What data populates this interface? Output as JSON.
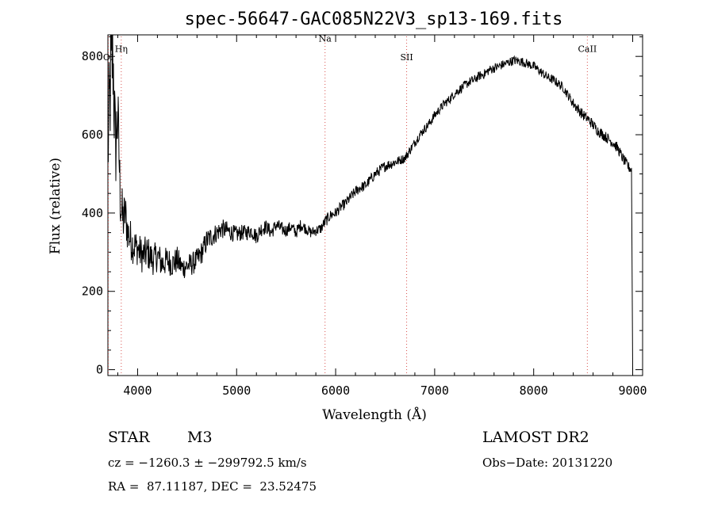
{
  "chart_data": {
    "type": "line",
    "title": "spec-56647-GAC085N22V3_sp13-169.fits",
    "xlabel": "Wavelength (Å)",
    "ylabel": "Flux (relative)",
    "xlim": [
      3700,
      9100
    ],
    "ylim": [
      -15,
      855
    ],
    "x_ticks": [
      4000,
      5000,
      6000,
      7000,
      8000,
      9000
    ],
    "x_tick_labels": [
      "4000",
      "5000",
      "6000",
      "7000",
      "8000",
      "9000"
    ],
    "y_ticks": [
      0,
      200,
      400,
      600,
      800
    ],
    "y_tick_labels": [
      "0",
      "200",
      "400",
      "600",
      "800"
    ],
    "grid": false,
    "series": [
      {
        "color": "#000000",
        "x": [
          3700,
          3725,
          3750,
          3775,
          3800,
          3825,
          3850,
          3875,
          3900,
          3950,
          4000,
          4050,
          4100,
          4150,
          4200,
          4250,
          4300,
          4350,
          4400,
          4450,
          4500,
          4550,
          4600,
          4650,
          4700,
          4750,
          4800,
          4850,
          4900,
          4950,
          5000,
          5050,
          5100,
          5150,
          5200,
          5250,
          5300,
          5350,
          5400,
          5450,
          5500,
          5550,
          5600,
          5650,
          5700,
          5750,
          5800,
          5850,
          5900,
          5950,
          6000,
          6050,
          6100,
          6150,
          6200,
          6250,
          6300,
          6350,
          6400,
          6450,
          6500,
          6550,
          6600,
          6650,
          6700,
          6750,
          6800,
          6850,
          6900,
          6950,
          7000,
          7050,
          7100,
          7150,
          7200,
          7250,
          7300,
          7350,
          7400,
          7450,
          7500,
          7550,
          7600,
          7650,
          7700,
          7750,
          7800,
          7850,
          7900,
          7950,
          8000,
          8050,
          8100,
          8150,
          8200,
          8250,
          8300,
          8350,
          8400,
          8450,
          8500,
          8550,
          8600,
          8650,
          8700,
          8750,
          8800,
          8850,
          8900,
          8950,
          8990,
          9000
        ],
        "y": [
          560,
          720,
          820,
          560,
          650,
          440,
          380,
          400,
          350,
          320,
          310,
          290,
          300,
          280,
          290,
          270,
          280,
          270,
          280,
          260,
          265,
          270,
          280,
          300,
          330,
          340,
          350,
          360,
          355,
          350,
          345,
          350,
          350,
          355,
          340,
          360,
          365,
          350,
          370,
          360,
          355,
          365,
          350,
          370,
          360,
          350,
          355,
          360,
          380,
          395,
          400,
          415,
          425,
          440,
          455,
          465,
          470,
          485,
          500,
          510,
          520,
          525,
          530,
          535,
          540,
          560,
          580,
          600,
          615,
          630,
          650,
          665,
          680,
          690,
          705,
          715,
          725,
          735,
          740,
          750,
          755,
          765,
          770,
          775,
          780,
          785,
          790,
          788,
          785,
          780,
          775,
          765,
          755,
          745,
          740,
          730,
          720,
          700,
          680,
          665,
          650,
          640,
          625,
          610,
          600,
          590,
          580,
          565,
          540,
          520,
          510,
          0
        ],
        "noise_amp": [
          140,
          160,
          160,
          130,
          100,
          80,
          70,
          60,
          55,
          50,
          45,
          45,
          45,
          40,
          40,
          40,
          35,
          35,
          35,
          30,
          30,
          30,
          30,
          30,
          30,
          28,
          25,
          25,
          25,
          22,
          22,
          20,
          20,
          20,
          20,
          20,
          18,
          18,
          18,
          18,
          16,
          16,
          16,
          16,
          14,
          14,
          14,
          14,
          16,
          14,
          14,
          14,
          14,
          14,
          14,
          14,
          14,
          14,
          14,
          14,
          14,
          14,
          14,
          12,
          12,
          12,
          12,
          12,
          12,
          12,
          12,
          12,
          12,
          12,
          12,
          12,
          12,
          12,
          12,
          12,
          12,
          12,
          12,
          12,
          12,
          12,
          12,
          12,
          12,
          12,
          12,
          12,
          12,
          12,
          12,
          12,
          12,
          12,
          14,
          14,
          14,
          14,
          14,
          14,
          14,
          14,
          14,
          14,
          14,
          14,
          14,
          0
        ]
      }
    ],
    "annotations": [
      {
        "label": "OI",
        "x": 3705,
        "label_y": 790
      },
      {
        "label": "Hη",
        "x": 3835,
        "label_y": 812
      },
      {
        "label": "Na",
        "x": 5893,
        "label_y": 838
      },
      {
        "label": "SII",
        "x": 6717,
        "label_y": 790
      },
      {
        "label": "CaII",
        "x": 8542,
        "label_y": 812
      }
    ],
    "line_marker_color": "#d9534f"
  },
  "info": {
    "object_class": "STAR",
    "subclass": "M3",
    "survey": "LAMOST DR2",
    "cz": "cz = −1260.3 ± −299792.5 km/s",
    "obs_date": "Obs−Date: 20131220",
    "radec": "RA =  87.11187, DEC =  23.52475"
  }
}
